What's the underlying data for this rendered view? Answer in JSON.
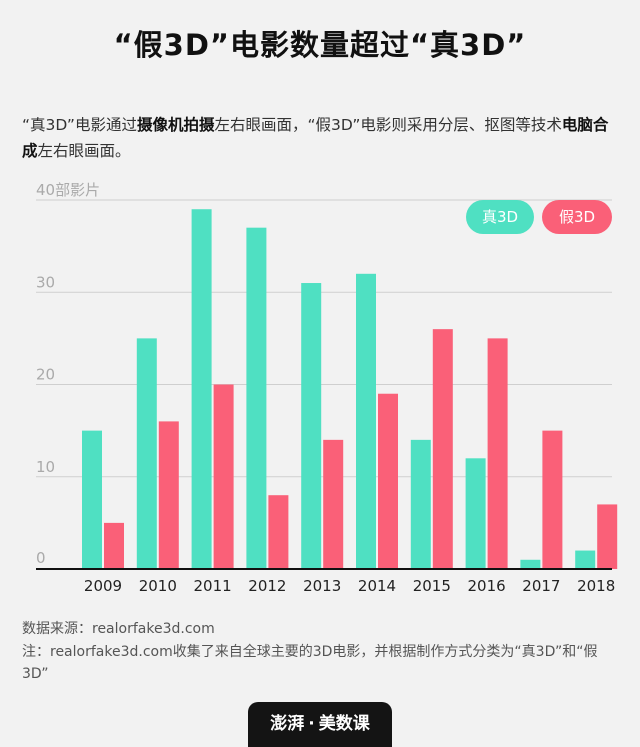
{
  "title": "“假3D”电影数量超过“真3D”",
  "intro": {
    "p1": "“真3D”电影通过",
    "b1": "摄像机拍摄",
    "p2": "左右眼画面，“假3D”电影则采用分层、抠图等技术",
    "b2": "电脑合成",
    "p3": "左右眼画面。"
  },
  "legend": {
    "real": "真3D",
    "fake": "假3D"
  },
  "source": "数据来源：realorfake3d.com",
  "note": "注：realorfake3d.com收集了来自全球主要的3D电影，并根据制作方式分类为“真3D”和“假3D”",
  "logo": {
    "brand": "澎湃",
    "sep": "·",
    "sub": "美数课"
  },
  "colors": {
    "real": "#4fe0c2",
    "fake": "#fa6078",
    "grid": "#cfcfcf",
    "axis": "#111111"
  },
  "chart_data": {
    "type": "bar",
    "categories": [
      "2009",
      "2010",
      "2011",
      "2012",
      "2013",
      "2014",
      "2015",
      "2016",
      "2017",
      "2018"
    ],
    "series": [
      {
        "name": "真3D",
        "values": [
          15,
          25,
          39,
          37,
          31,
          32,
          14,
          12,
          1,
          2
        ]
      },
      {
        "name": "假3D",
        "values": [
          5,
          16,
          20,
          8,
          14,
          19,
          26,
          25,
          15,
          7
        ]
      }
    ],
    "y_ticks": [
      "0",
      "10",
      "20",
      "30",
      "40部影片"
    ],
    "ylim": [
      0,
      40
    ],
    "grid": true,
    "legend_position": "top-right"
  }
}
